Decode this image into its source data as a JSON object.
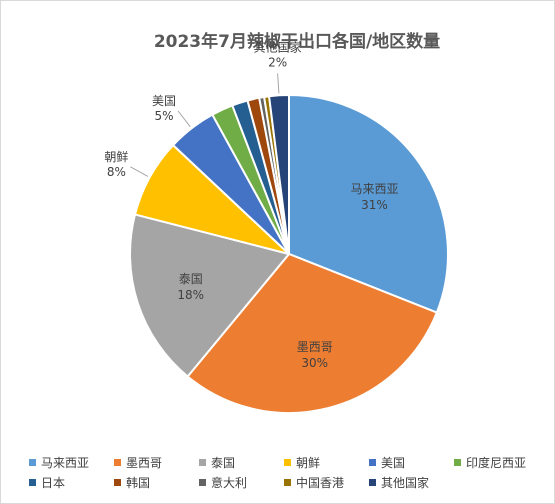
{
  "chart_data": {
    "type": "pie",
    "title": "2023年7月辣椒干出口各国/地区数量",
    "slices": [
      {
        "name": "马来西亚",
        "value": 31,
        "label": "31%",
        "color": "#5b9bd5"
      },
      {
        "name": "墨西哥",
        "value": 30,
        "label": "30%",
        "color": "#ed7d31"
      },
      {
        "name": "泰国",
        "value": 18,
        "label": "18%",
        "color": "#a5a5a5"
      },
      {
        "name": "朝鲜",
        "value": 8,
        "label": "8%",
        "color": "#ffc000"
      },
      {
        "name": "美国",
        "value": 5,
        "label": "5%",
        "color": "#4472c4"
      },
      {
        "name": "印度尼西亚",
        "value": 2.2,
        "label": "",
        "color": "#70ad47"
      },
      {
        "name": "日本",
        "value": 1.6,
        "label": "",
        "color": "#255e91"
      },
      {
        "name": "韩国",
        "value": 1.2,
        "label": "",
        "color": "#9e480e"
      },
      {
        "name": "意大利",
        "value": 0.5,
        "label": "",
        "color": "#636363"
      },
      {
        "name": "中国香港",
        "value": 0.5,
        "label": "",
        "color": "#997300"
      },
      {
        "name": "其他国家",
        "value": 2,
        "label": "2%",
        "color": "#264478"
      }
    ],
    "legend_position": "bottom"
  }
}
